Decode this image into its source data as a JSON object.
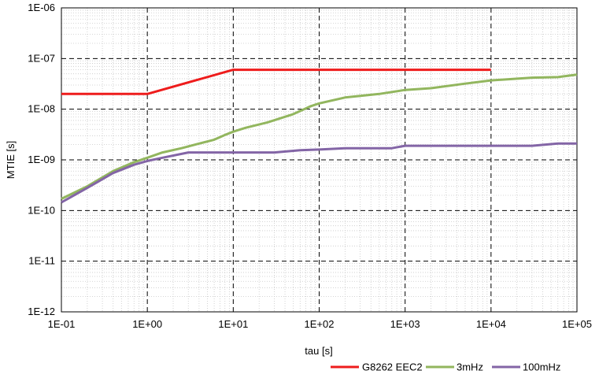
{
  "chart_data": {
    "type": "line",
    "xlabel": "tau [s]",
    "ylabel": "MTIE [s]",
    "x_scale": "log",
    "y_scale": "log",
    "xlim": [
      0.1,
      100000
    ],
    "ylim": [
      1e-12,
      1e-06
    ],
    "x_tick_labels": [
      "1E-01",
      "1E+00",
      "1E+01",
      "1E+02",
      "1E+03",
      "1E+04",
      "1E+05"
    ],
    "y_tick_labels": [
      "1E-12",
      "1E-11",
      "1E-10",
      "1E-09",
      "1E-08",
      "1E-07",
      "1E-06"
    ],
    "grid": "major dashed, minor dotted",
    "legend_position": "bottom-right",
    "series": [
      {
        "name": "G8262 EEC2",
        "color": "#ee1c1c",
        "x": [
          0.1,
          1,
          10,
          10000
        ],
        "y": [
          2e-08,
          2e-08,
          6e-08,
          6e-08
        ]
      },
      {
        "name": "3mHz",
        "color": "#92b65e",
        "x": [
          0.1,
          0.2,
          0.4,
          0.7,
          1,
          1.5,
          2.5,
          4,
          6,
          8,
          10,
          14,
          25,
          50,
          80,
          100,
          200,
          500,
          1000,
          2000,
          5000,
          10000,
          30000,
          60000,
          100000
        ],
        "y": [
          1.7e-10,
          3e-10,
          6e-10,
          9e-10,
          1.1e-09,
          1.4e-09,
          1.7e-09,
          2.1e-09,
          2.5e-09,
          3.1e-09,
          3.6e-09,
          4.3e-09,
          5.5e-09,
          8e-09,
          1.15e-08,
          1.3e-08,
          1.7e-08,
          2e-08,
          2.4e-08,
          2.6e-08,
          3.2e-08,
          3.7e-08,
          4.2e-08,
          4.3e-08,
          4.8e-08
        ]
      },
      {
        "name": "100mHz",
        "color": "#8365a6",
        "x": [
          0.1,
          0.2,
          0.4,
          0.7,
          1,
          1.5,
          3,
          10,
          30,
          60,
          100,
          200,
          700,
          1000,
          10000,
          30000,
          60000,
          100000
        ],
        "y": [
          1.45e-10,
          2.8e-10,
          5.5e-10,
          8e-10,
          9.5e-10,
          1.1e-09,
          1.4e-09,
          1.4e-09,
          1.4e-09,
          1.55e-09,
          1.6e-09,
          1.7e-09,
          1.7e-09,
          1.9e-09,
          1.9e-09,
          1.9e-09,
          2.1e-09,
          2.1e-09
        ]
      }
    ]
  }
}
